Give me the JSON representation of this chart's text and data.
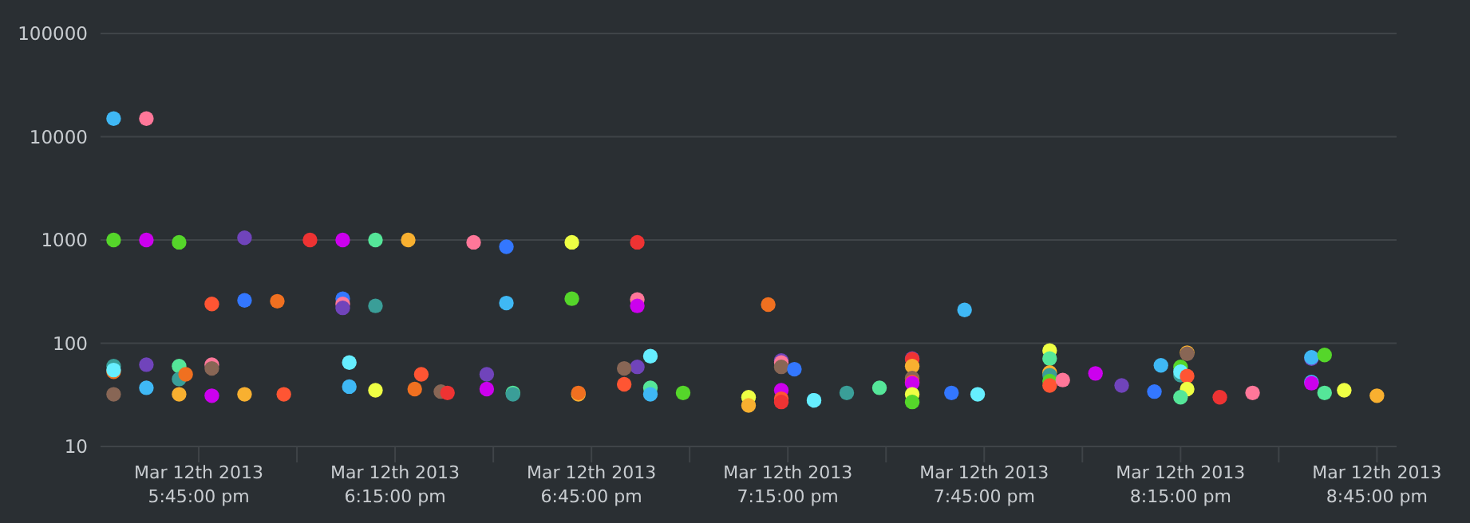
{
  "chart_data": {
    "type": "scatter",
    "marker": "circle",
    "grid": "y",
    "log": "y",
    "xlim": [
      "2013-03-12T17:30",
      "2013-03-12T20:48"
    ],
    "xticks": [
      {
        "value": "2013-03-12T17:45",
        "label": "Mar 12th 2013\n5:45:00 pm"
      },
      {
        "value": "2013-03-12T18:00",
        "label": null
      },
      {
        "value": "2013-03-12T18:15",
        "label": "Mar 12th 2013\n6:15:00 pm"
      },
      {
        "value": "2013-03-12T18:30",
        "label": null
      },
      {
        "value": "2013-03-12T18:45",
        "label": "Mar 12th 2013\n6:45:00 pm"
      },
      {
        "value": "2013-03-12T19:00",
        "label": null
      },
      {
        "value": "2013-03-12T19:15",
        "label": "Mar 12th 2013\n7:15:00 pm"
      },
      {
        "value": "2013-03-12T19:30",
        "label": null
      },
      {
        "value": "2013-03-12T19:45",
        "label": "Mar 12th 2013\n7:45:00 pm"
      },
      {
        "value": "2013-03-12T20:00",
        "label": null
      },
      {
        "value": "2013-03-12T20:15",
        "label": "Mar 12th 2013\n8:15:00 pm"
      },
      {
        "value": "2013-03-12T20:30",
        "label": null
      },
      {
        "value": "2013-03-12T20:45",
        "label": "Mar 12th 2013\n8:45:00 pm"
      }
    ],
    "ylim": [
      10,
      100000
    ],
    "yticks": [
      10,
      100,
      1000,
      10000,
      100000
    ],
    "x": [
      "2013-03-12T17:32",
      "2013-03-12T17:37",
      "2013-03-12T17:32",
      "2013-03-12T17:37",
      "2013-03-12T17:42",
      "2013-03-12T17:52",
      "2013-03-12T18:02",
      "2013-03-12T18:07",
      "2013-03-12T18:12",
      "2013-03-12T18:17",
      "2013-03-12T18:27",
      "2013-03-12T18:32",
      "2013-03-12T17:47",
      "2013-03-12T17:52",
      "2013-03-12T17:57",
      "2013-03-12T18:07",
      "2013-03-12T18:07",
      "2013-03-12T18:07",
      "2013-03-12T18:12",
      "2013-03-12T18:32",
      "2013-03-12T17:32",
      "2013-03-12T17:32",
      "2013-03-12T17:32",
      "2013-03-12T17:32",
      "2013-03-12T17:37",
      "2013-03-12T17:37",
      "2013-03-12T17:42",
      "2013-03-12T17:42",
      "2013-03-12T17:43",
      "2013-03-12T17:42",
      "2013-03-12T17:47",
      "2013-03-12T17:47",
      "2013-03-12T17:47",
      "2013-03-12T17:52",
      "2013-03-12T17:58",
      "2013-03-12T18:08",
      "2013-03-12T18:08",
      "2013-03-12T18:12",
      "2013-03-12T18:18",
      "2013-03-12T18:19",
      "2013-03-12T18:22",
      "2013-03-12T18:23",
      "2013-03-12T18:29",
      "2013-03-12T18:29",
      "2013-03-12T18:33",
      "2013-03-12T18:33",
      "2013-03-12T18:42",
      "2013-03-12T18:52",
      "2013-03-12T18:42",
      "2013-03-12T18:52",
      "2013-03-12T18:52",
      "2013-03-12T19:12",
      "2013-03-12T19:42",
      "2013-03-12T18:54",
      "2013-03-12T18:52",
      "2013-03-12T18:50",
      "2013-03-12T18:50",
      "2013-03-12T18:54",
      "2013-03-12T18:54",
      "2013-03-12T18:43",
      "2013-03-12T18:43",
      "2013-03-12T18:59",
      "2013-03-12T19:09",
      "2013-03-12T19:09",
      "2013-03-12T19:14",
      "2013-03-12T19:14",
      "2013-03-12T19:14",
      "2013-03-12T19:16",
      "2013-03-12T19:14",
      "2013-03-12T19:14",
      "2013-03-12T19:14",
      "2013-03-12T19:19",
      "2013-03-12T19:19",
      "2013-03-12T19:24",
      "2013-03-12T19:29",
      "2013-03-12T19:34",
      "2013-03-12T19:34",
      "2013-03-12T19:34",
      "2013-03-12T19:34",
      "2013-03-12T19:34",
      "2013-03-12T19:34",
      "2013-03-12T19:34",
      "2013-03-12T19:34",
      "2013-03-12T19:40",
      "2013-03-12T19:44",
      "2013-03-12T19:55",
      "2013-03-12T19:55",
      "2013-03-12T19:55",
      "2013-03-12T19:55",
      "2013-03-12T19:55",
      "2013-03-12T19:55",
      "2013-03-12T19:57",
      "2013-03-12T20:02",
      "2013-03-12T20:06",
      "2013-03-12T20:11",
      "2013-03-12T20:12",
      "2013-03-12T20:15",
      "2013-03-12T20:16",
      "2013-03-12T20:16",
      "2013-03-12T20:15",
      "2013-03-12T20:15",
      "2013-03-12T20:16",
      "2013-03-12T20:16",
      "2013-03-12T20:15",
      "2013-03-12T20:21",
      "2013-03-12T20:26",
      "2013-03-12T20:35",
      "2013-03-12T20:35",
      "2013-03-12T20:37",
      "2013-03-12T20:35",
      "2013-03-12T20:35",
      "2013-03-12T20:37",
      "2013-03-12T20:40",
      "2013-03-12T20:45"
    ],
    "values": [
      15000,
      15000,
      1000,
      1000,
      950,
      1050,
      1000,
      1000,
      1000,
      1000,
      950,
      860,
      240,
      260,
      255,
      270,
      240,
      220,
      230,
      245,
      60,
      53,
      55,
      32,
      62,
      37,
      60,
      45,
      50,
      32,
      62,
      57,
      31,
      32,
      32,
      65,
      38,
      35,
      36,
      50,
      34,
      33,
      36,
      50,
      33,
      32,
      950,
      950,
      270,
      265,
      230,
      237,
      210,
      75,
      59,
      57,
      40,
      37,
      32,
      32,
      33,
      33,
      30,
      25,
      68,
      65,
      59,
      56,
      35,
      29,
      27,
      28,
      28,
      33,
      37,
      71,
      70,
      60,
      46,
      42,
      41,
      32,
      27,
      33,
      32,
      85,
      71,
      52,
      49,
      43,
      39,
      44,
      51,
      39,
      34,
      61,
      59,
      81,
      79,
      49,
      53,
      48,
      36,
      30,
      30,
      33,
      71,
      73,
      77,
      42,
      41,
      33,
      35,
      31
    ],
    "colors": [
      "#3fb8f5",
      "#ff7799",
      "#55d62a",
      "#cc00ee",
      "#55d62a",
      "#7044bb",
      "#ee3333",
      "#cc00ee",
      "#55e699",
      "#f8b030",
      "#ff7799",
      "#3377ff",
      "#ff5533",
      "#3377ff",
      "#f07020",
      "#3377ff",
      "#ff7799",
      "#7044bb",
      "#3a9e98",
      "#3fb8f5",
      "#3a9e98",
      "#f07020",
      "#66eeff",
      "#886655",
      "#7044bb",
      "#3fb8f5",
      "#55e699",
      "#3a9e98",
      "#f07020",
      "#f8b030",
      "#ff7799",
      "#886655",
      "#cc00ee",
      "#f8b030",
      "#ff5533",
      "#66eeff",
      "#3fb8f5",
      "#eeff44",
      "#f07020",
      "#ff5533",
      "#886655",
      "#ee3333",
      "#cc00ee",
      "#7044bb",
      "#55e699",
      "#3a9e98",
      "#eeff44",
      "#ee3333",
      "#55d62a",
      "#ff7799",
      "#cc00ee",
      "#f07020",
      "#3fb8f5",
      "#66eeff",
      "#7044bb",
      "#886655",
      "#ff5533",
      "#55e699",
      "#3fb8f5",
      "#f8b030",
      "#f07020",
      "#55d62a",
      "#eeff44",
      "#f8b030",
      "#7044bb",
      "#ff7799",
      "#886655",
      "#3377ff",
      "#cc00ee",
      "#ff5533",
      "#ee3333",
      "#3fb8f5",
      "#66eeff",
      "#3a9e98",
      "#55e699",
      "#7044bb",
      "#ee3333",
      "#f8b030",
      "#886655",
      "#ff5533",
      "#cc00ee",
      "#eeff44",
      "#55d62a",
      "#3377ff",
      "#66eeff",
      "#eeff44",
      "#55e699",
      "#f8b030",
      "#3a9e98",
      "#55d62a",
      "#ff5533",
      "#ff7799",
      "#cc00ee",
      "#7044bb",
      "#3377ff",
      "#3fb8f5",
      "#55d62a",
      "#f8b030",
      "#886655",
      "#3a9e98",
      "#66eeff",
      "#ff5533",
      "#eeff44",
      "#55e699",
      "#ee3333",
      "#ff7799",
      "#7044bb",
      "#3fb8f5",
      "#55d62a",
      "#3fb8f5",
      "#cc00ee",
      "#55e699",
      "#eeff44",
      "#f8b030"
    ]
  }
}
